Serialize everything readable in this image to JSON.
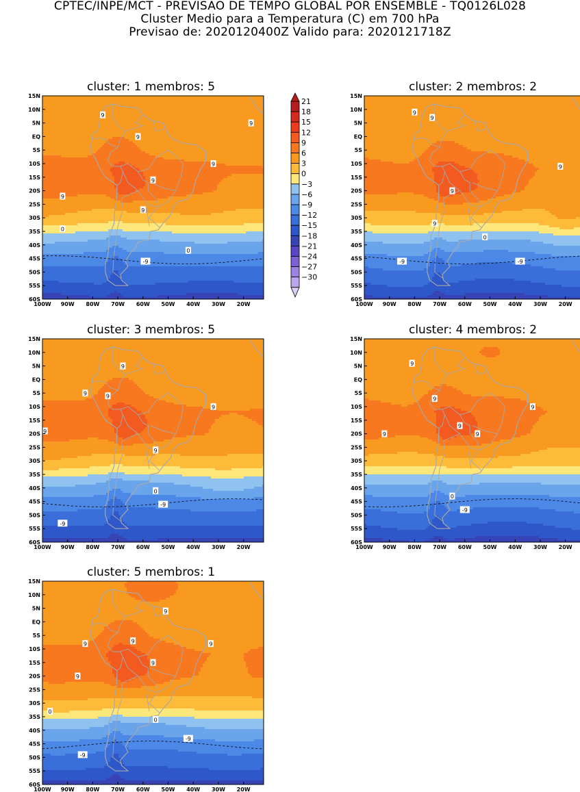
{
  "header": {
    "line1": "CPTEC/INPE/MCT - PREVISAO DE TEMPO GLOBAL POR ENSEMBLE - TQ0126L028",
    "line2": "Cluster Medio para a Temperatura (C) em 700 hPa",
    "line3": "Previsao de: 2020120400Z   Valido para: 2020121718Z"
  },
  "panels": [
    {
      "title": "cluster: 1   membros: 5",
      "variant": 1,
      "labels": [
        {
          "t": "9",
          "lon": -76,
          "lat": 8
        },
        {
          "t": "9",
          "lon": -62,
          "lat": 0
        },
        {
          "t": "9",
          "lon": -17,
          "lat": 5
        },
        {
          "t": "9",
          "lon": -32,
          "lat": -10
        },
        {
          "t": "9",
          "lon": -56,
          "lat": -16
        },
        {
          "t": "9",
          "lon": -92,
          "lat": -22
        },
        {
          "t": "9",
          "lon": -60,
          "lat": -27
        },
        {
          "t": "0",
          "lon": -92,
          "lat": -34
        },
        {
          "t": "0",
          "lon": -42,
          "lat": -42
        },
        {
          "t": "-9",
          "lon": -59,
          "lat": -46
        }
      ]
    },
    {
      "title": "cluster: 2   membros: 2",
      "variant": 2,
      "labels": [
        {
          "t": "9",
          "lon": -80,
          "lat": 9
        },
        {
          "t": "9",
          "lon": -73,
          "lat": 7
        },
        {
          "t": "9",
          "lon": -22,
          "lat": -11
        },
        {
          "t": "9",
          "lon": -65,
          "lat": -20
        },
        {
          "t": "9",
          "lon": -72,
          "lat": -32
        },
        {
          "t": "0",
          "lon": -52,
          "lat": -37
        },
        {
          "t": "-9",
          "lon": -85,
          "lat": -46
        },
        {
          "t": "-9",
          "lon": -38,
          "lat": -46
        }
      ]
    },
    {
      "title": "cluster: 3   membros: 5",
      "variant": 3,
      "labels": [
        {
          "t": "9",
          "lon": -68,
          "lat": 5
        },
        {
          "t": "9",
          "lon": -83,
          "lat": -5
        },
        {
          "t": "9",
          "lon": -74,
          "lat": -6
        },
        {
          "t": "9",
          "lon": -32,
          "lat": -10
        },
        {
          "t": "9",
          "lon": -99,
          "lat": -19
        },
        {
          "t": "9",
          "lon": -55,
          "lat": -26
        },
        {
          "t": "0",
          "lon": -55,
          "lat": -41
        },
        {
          "t": "-9",
          "lon": -52,
          "lat": -46
        },
        {
          "t": "-9",
          "lon": -92,
          "lat": -53
        }
      ]
    },
    {
      "title": "cluster: 4   membros: 2",
      "variant": 4,
      "labels": [
        {
          "t": "9",
          "lon": -81,
          "lat": 6
        },
        {
          "t": "9",
          "lon": -72,
          "lat": -7
        },
        {
          "t": "9",
          "lon": -33,
          "lat": -10
        },
        {
          "t": "9",
          "lon": -62,
          "lat": -17
        },
        {
          "t": "9",
          "lon": -55,
          "lat": -20
        },
        {
          "t": "9",
          "lon": -92,
          "lat": -20
        },
        {
          "t": "0",
          "lon": -65,
          "lat": -43
        },
        {
          "t": "-9",
          "lon": -60,
          "lat": -48
        }
      ]
    },
    {
      "title": "cluster: 5   membros: 1",
      "variant": 5,
      "labels": [
        {
          "t": "9",
          "lon": -51,
          "lat": 4
        },
        {
          "t": "9",
          "lon": -83,
          "lat": -8
        },
        {
          "t": "9",
          "lon": -64,
          "lat": -7
        },
        {
          "t": "9",
          "lon": -33,
          "lat": -8
        },
        {
          "t": "9",
          "lon": -56,
          "lat": -15
        },
        {
          "t": "9",
          "lon": -86,
          "lat": -20
        },
        {
          "t": "0",
          "lon": -97,
          "lat": -33
        },
        {
          "t": "0",
          "lon": -55,
          "lat": -36
        },
        {
          "t": "-9",
          "lon": -42,
          "lat": -43
        },
        {
          "t": "-9",
          "lon": -84,
          "lat": -49
        }
      ]
    }
  ],
  "lat_ticks": [
    "15N",
    "10N",
    "5N",
    "EQ",
    "5S",
    "10S",
    "15S",
    "20S",
    "25S",
    "30S",
    "35S",
    "40S",
    "45S",
    "50S",
    "55S",
    "60S"
  ],
  "lon_ticks": [
    "100W",
    "90W",
    "80W",
    "70W",
    "60W",
    "50W",
    "40W",
    "30W",
    "20W"
  ],
  "colorbar": {
    "labels": [
      "21",
      "18",
      "15",
      "12",
      "9",
      "6",
      "3",
      "0",
      "-3",
      "-6",
      "-9",
      "-12",
      "-15",
      "-18",
      "-21",
      "-24",
      "-27",
      "-30"
    ],
    "colors": [
      "#b51d1d",
      "#d62a1f",
      "#ec3b1c",
      "#f25a20",
      "#f8781f",
      "#f99a20",
      "#fdbb39",
      "#fde67a",
      "#8fc2ef",
      "#6aa5ec",
      "#4c88e6",
      "#3a6ed9",
      "#2e58c9",
      "#3843b6",
      "#5a45c4",
      "#7a62d6",
      "#9a82e3",
      "#bba6ee",
      "#dad0f6"
    ]
  }
}
